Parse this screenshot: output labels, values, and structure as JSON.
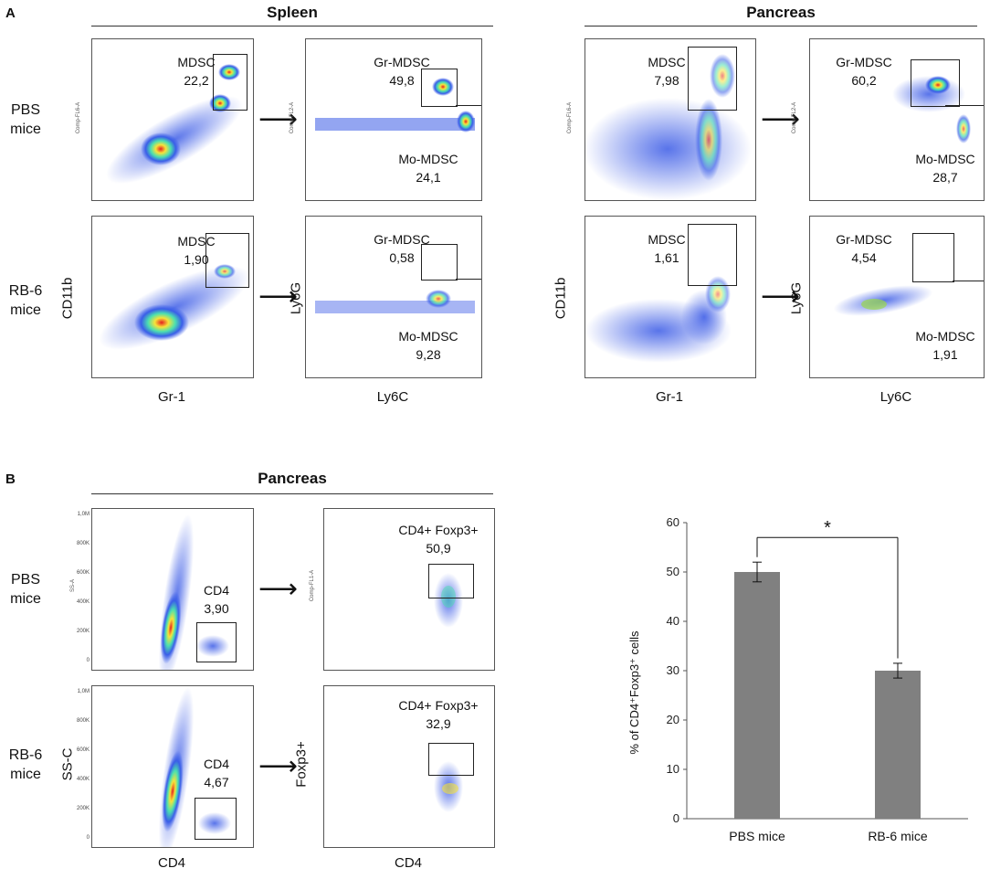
{
  "panel_a": {
    "letter": "A",
    "sections": {
      "spleen": "Spleen",
      "pancreas": "Pancreas"
    },
    "rows": {
      "pbs": "PBS\nmice",
      "rb6": "RB-6\nmice"
    },
    "axes": {
      "cd11b": "CD11b",
      "gr1": "Gr-1",
      "ly6g": "Ly6G",
      "ly6c": "Ly6C",
      "comp_fl6": "Comp-FL6-A",
      "comp_fl2": "Comp-FL2-A"
    },
    "plots": {
      "spleen_pbs_gr1": {
        "gate": "MDSC",
        "value": "22,2"
      },
      "spleen_pbs_ly6": {
        "gate1": "Gr-MDSC",
        "value1": "49,8",
        "gate2": "Mo-MDSC",
        "value2": "24,1"
      },
      "spleen_rb6_gr1": {
        "gate": "MDSC",
        "value": "1,90"
      },
      "spleen_rb6_ly6": {
        "gate1": "Gr-MDSC",
        "value1": "0,58",
        "gate2": "Mo-MDSC",
        "value2": "9,28"
      },
      "panc_pbs_gr1": {
        "gate": "MDSC",
        "value": "7,98"
      },
      "panc_pbs_ly6": {
        "gate1": "Gr-MDSC",
        "value1": "60,2",
        "gate2": "Mo-MDSC",
        "value2": "28,7"
      },
      "panc_rb6_gr1": {
        "gate": "MDSC",
        "value": "1,61"
      },
      "panc_rb6_ly6": {
        "gate1": "Gr-MDSC",
        "value1": "4,54",
        "gate2": "Mo-MDSC",
        "value2": "1,91"
      }
    }
  },
  "panel_b": {
    "letter": "B",
    "section": "Pancreas",
    "rows": {
      "pbs": "PBS\nmice",
      "rb6": "RB-6\nmice"
    },
    "axes": {
      "ssc": "SS-C",
      "cd4": "CD4",
      "foxp3": "Foxp3+",
      "ss_a": "SS-A",
      "comp_fl1": "Comp-FL1-A"
    },
    "plots": {
      "pbs_cd4": {
        "gate": "CD4",
        "value": "3,90"
      },
      "pbs_foxp3": {
        "gate": "CD4+ Foxp3+",
        "value": "50,9"
      },
      "rb6_cd4": {
        "gate": "CD4",
        "value": "4,67"
      },
      "rb6_foxp3": {
        "gate": "CD4+ Foxp3+",
        "value": "32,9"
      }
    },
    "ss_ticks": [
      "1,0M",
      "800K",
      "600K",
      "400K",
      "200K",
      "0"
    ]
  },
  "chart_data": {
    "type": "bar",
    "categories": [
      "PBS mice",
      "RB-6 mice"
    ],
    "values": [
      50,
      30
    ],
    "errors": [
      2,
      1.5
    ],
    "ylabel": "% of CD4⁺Foxp3⁺ cells",
    "ylim": [
      0,
      60
    ],
    "yticks": [
      0,
      10,
      20,
      30,
      40,
      50,
      60
    ],
    "annotation": "*",
    "bar_color": "#808080"
  }
}
